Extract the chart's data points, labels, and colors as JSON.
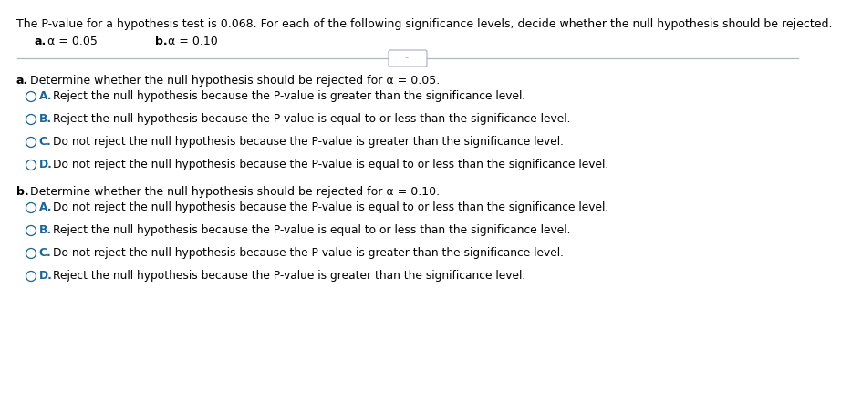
{
  "bg_color": "#ffffff",
  "text_color": "#000000",
  "blue_color": "#1a6496",
  "header_text": "The P-value for a hypothesis test is 0.068. For each of the following significance levels, decide whether the null hypothesis should be rejected.",
  "font_size_header": 9.0,
  "font_size_sub": 9.0,
  "font_size_section_hdr": 9.0,
  "font_size_option": 8.8,
  "sub_a_label": "a.",
  "sub_a_text": "α = 0.05",
  "sub_b_label": "b.",
  "sub_b_text": "α = 0.10",
  "section_a_header_prefix": "a.",
  "section_a_header_text": " Determine whether the null hypothesis should be rejected for α = 0.05.",
  "section_b_header_prefix": "b.",
  "section_b_header_text": " Determine whether the null hypothesis should be rejected for α = 0.10.",
  "section_a_options": [
    {
      "letter": "A.",
      "text": "  Reject the null hypothesis because the P-value is greater than the significance level."
    },
    {
      "letter": "B.",
      "text": "  Reject the null hypothesis because the P-value is equal to or less than the significance level."
    },
    {
      "letter": "C.",
      "text": "  Do not reject the null hypothesis because the P-value is greater than the significance level."
    },
    {
      "letter": "D.",
      "text": "  Do not reject the null hypothesis because the P-value is equal to or less than the significance level."
    }
  ],
  "section_b_options": [
    {
      "letter": "A.",
      "text": "  Do not reject the null hypothesis because the P-value is equal to or less than the significance level."
    },
    {
      "letter": "B.",
      "text": "  Reject the null hypothesis because the P-value is equal to or less than the significance level."
    },
    {
      "letter": "C.",
      "text": "  Do not reject the null hypothesis because the P-value is greater than the significance level."
    },
    {
      "letter": "D.",
      "text": "  Reject the null hypothesis because the P-value is greater than the significance level."
    }
  ]
}
